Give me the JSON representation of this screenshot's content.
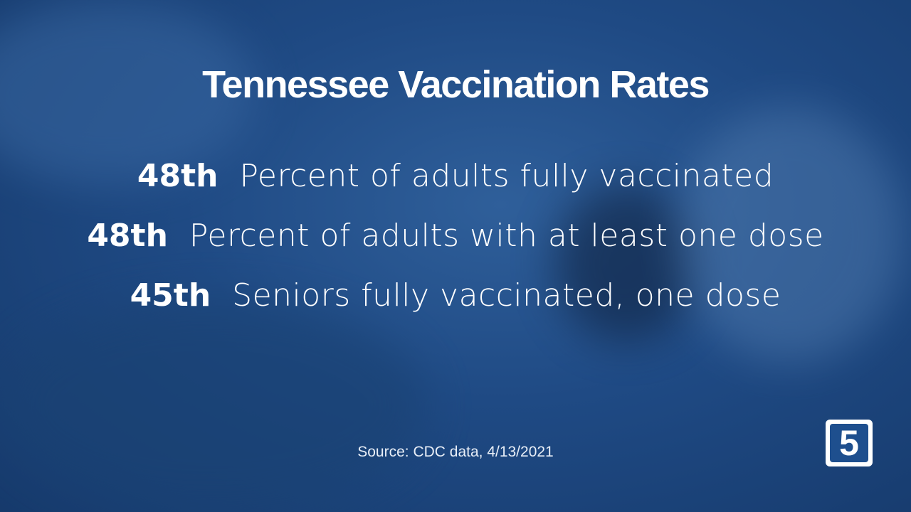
{
  "title": "Tennessee Vaccination Rates",
  "rows": [
    {
      "rank": "48th",
      "label": "Percent of adults fully vaccinated"
    },
    {
      "rank": "48th",
      "label": "Percent of adults with at least one dose"
    },
    {
      "rank": "45th",
      "label": "Seniors fully vaccinated, one dose"
    }
  ],
  "source": "Source: CDC data, 4/13/2021",
  "logo": "5"
}
